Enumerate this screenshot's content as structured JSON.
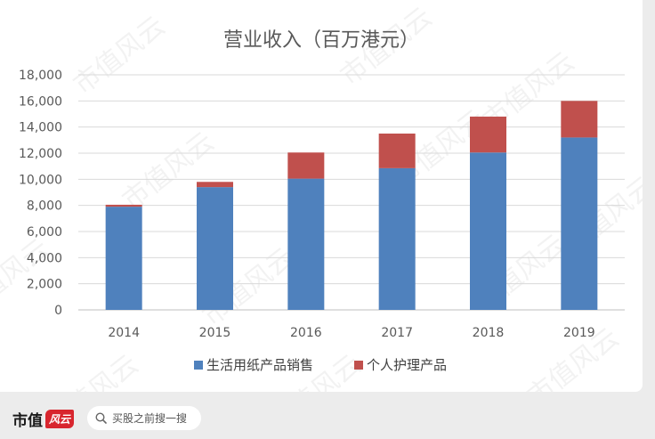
{
  "chart_data": {
    "type": "bar",
    "stacked": true,
    "title": "营业收入（百万港元）",
    "categories": [
      "2014",
      "2015",
      "2016",
      "2017",
      "2018",
      "2019"
    ],
    "series": [
      {
        "name": "生活用纸产品销售",
        "color": "#4f81bd",
        "values": [
          7900,
          9400,
          10050,
          10850,
          12050,
          13200
        ]
      },
      {
        "name": "个人护理产品",
        "color": "#c0504d",
        "values": [
          150,
          400,
          2000,
          2650,
          2750,
          2800
        ]
      }
    ],
    "ylim": [
      0,
      18000
    ],
    "yticks": [
      "0",
      "2,000",
      "4,000",
      "6,000",
      "8,000",
      "10,000",
      "12,000",
      "14,000",
      "16,000",
      "18,000"
    ],
    "grid": true,
    "legend_position": "bottom"
  },
  "watermark": "市值风云",
  "brand": {
    "name": "市值",
    "mark": "风云"
  },
  "search": {
    "icon": "search-icon",
    "label": "买股之前搜一搜"
  }
}
